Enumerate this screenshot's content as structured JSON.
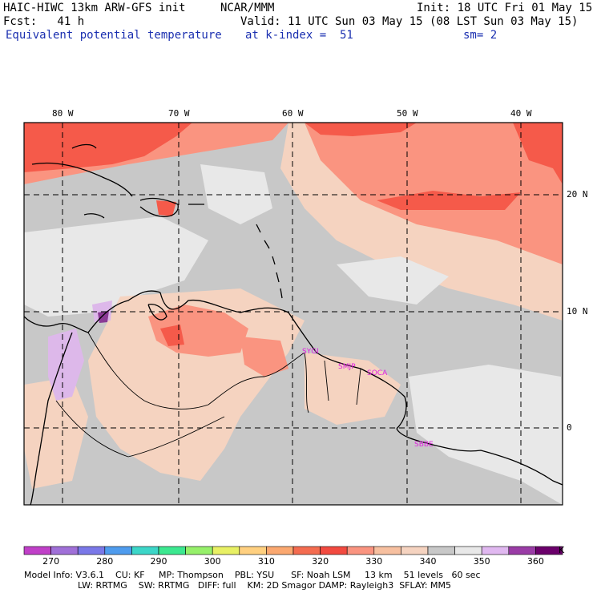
{
  "header": {
    "model": "HAIC-HIWC 13km ARW-GFS init",
    "org": "NCAR/MMM",
    "init": "Init: 18 UTC Fri 01 May 15",
    "fcst": "Fcst:   41 h",
    "valid": "Valid: 11 UTC Sun 03 May 15 (08 LST Sun 03 May 15)",
    "field": "Equivalent potential temperature",
    "level": "at k-index =  51",
    "smooth": "sm= 2"
  },
  "map": {
    "lon_labels": [
      "80 W",
      "70 W",
      "60 W",
      "50 W",
      "40 W"
    ],
    "lat_labels": [
      "20 N",
      "10 N",
      "0"
    ],
    "stations": [
      "SYGI",
      "SMJP",
      "SOCA",
      "SBBE"
    ],
    "colors": {
      "ocean_grey": "#c8c8c8",
      "light_grey": "#e0e0e0",
      "tan": "#f5c7a8",
      "salmon": "#fa9480",
      "red": "#f55a4a",
      "lavender": "#ddb8ea",
      "purple": "#8a3a95",
      "station_text": "#e020e0"
    }
  },
  "colorbar": {
    "labels": [
      "270",
      "280",
      "290",
      "300",
      "310",
      "320",
      "330",
      "340",
      "350",
      "360",
      "K"
    ],
    "colors": [
      "#c040c8",
      "#a070d8",
      "#7a78e8",
      "#4f9cee",
      "#3cd6c8",
      "#3ce890",
      "#96f06a",
      "#e8f064",
      "#ffd080",
      "#fba870",
      "#f46c50",
      "#f24a40",
      "#fa9480",
      "#f7c0a0",
      "#f5d3c0",
      "#c8c8c8",
      "#e8e8e8",
      "#e0b8f0",
      "#9a3ca6",
      "#6b006b"
    ]
  },
  "footer": {
    "line1": "Model Info: V3.6.1    CU: KF     MP: Thompson    PBL: YSU      SF: Noah LSM     13 km    51 levels   60 sec",
    "line2": "LW: RRTMG    SW: RRTMG   DIFF: full    KM: 2D Smagor DAMP: Rayleigh3  SFLAY: MM5"
  }
}
